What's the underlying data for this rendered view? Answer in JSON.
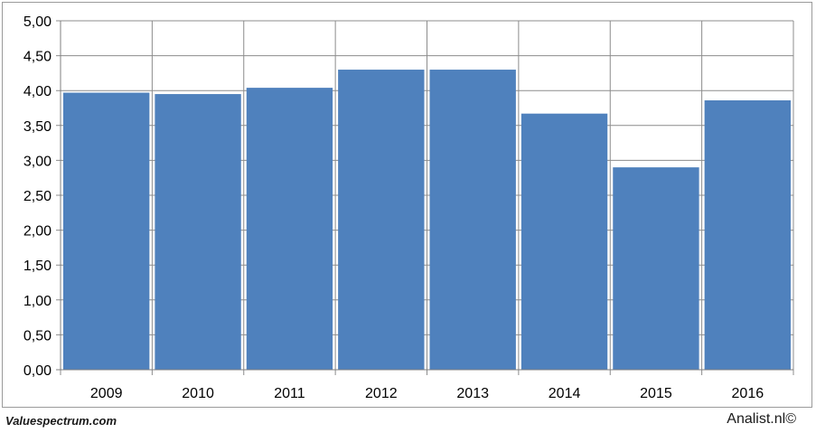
{
  "chart_data": {
    "type": "bar",
    "categories": [
      "2009",
      "2010",
      "2011",
      "2012",
      "2013",
      "2014",
      "2015",
      "2016"
    ],
    "values": [
      3.97,
      3.95,
      4.04,
      4.3,
      4.3,
      3.67,
      2.9,
      3.86
    ],
    "title": "",
    "xlabel": "",
    "ylabel": "",
    "ylim": [
      0,
      5
    ],
    "yticks": [
      "0,00",
      "0,50",
      "1,00",
      "1,50",
      "2,00",
      "2,50",
      "3,00",
      "3,50",
      "4,00",
      "4,50",
      "5,00"
    ],
    "grid": true,
    "bar_color": "#4f81bd",
    "grid_color": "#8c8c8c"
  },
  "footer": {
    "source_left": "Valuespectrum.com",
    "source_right": "Analist.nl©"
  }
}
